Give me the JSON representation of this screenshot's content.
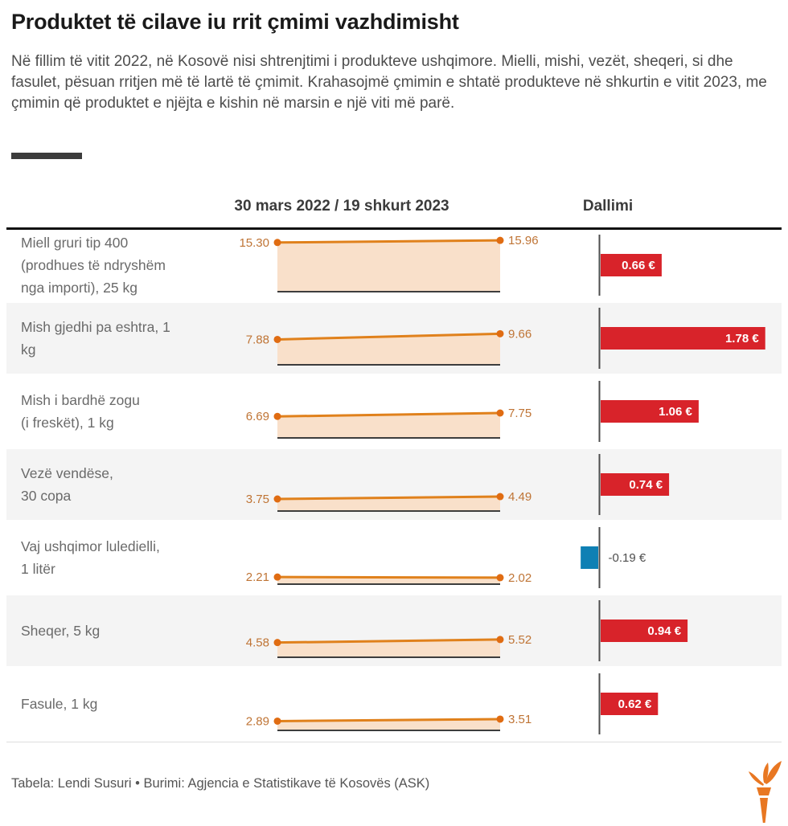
{
  "title": "Produktet të cilave iu rrit çmimi vazhdimisht",
  "intro": "Në fillim të vitit 2022, në Kosovë nisi shtrenjtimi i produkteve ushqimore. Mielli, mishi, vezët, sheqeri, si dhe fasulet, pësuan rritjen më të lartë të çmimit. Krahasojmë çmimin e shtatë produkteve në shkurtin e vitit 2023, me çmimin që produktet e njëjta e kishin në marsin e një viti më parë.",
  "chart_data": {
    "type": "slope",
    "slope_header": "30 mars 2022 / 19 shkurt 2023",
    "diff_header": "Dallimi",
    "unit": "€",
    "x": [
      "30 mars 2022",
      "19 shkurt 2023"
    ],
    "rows": [
      {
        "label_lines": [
          "Miell gruri tip 400",
          "(prodhues të ndryshëm",
          "nga importi), 25 kg"
        ],
        "value_2022": 15.3,
        "value_2023": 15.96,
        "value_2022_label": "15.30",
        "value_2023_label": "15.96",
        "diff": 0.66,
        "diff_label": "0.66 €"
      },
      {
        "label_lines": [
          "Mish gjedhi pa eshtra, 1",
          "kg"
        ],
        "value_2022": 7.88,
        "value_2023": 9.66,
        "value_2022_label": "7.88",
        "value_2023_label": "9.66",
        "diff": 1.78,
        "diff_label": "1.78 €"
      },
      {
        "label_lines": [
          "Mish i bardhë zogu",
          "(i freskët), 1 kg"
        ],
        "value_2022": 6.69,
        "value_2023": 7.75,
        "value_2022_label": "6.69",
        "value_2023_label": "7.75",
        "diff": 1.06,
        "diff_label": "1.06 €"
      },
      {
        "label_lines": [
          "Vezë vendëse,",
          "30 copa"
        ],
        "value_2022": 3.75,
        "value_2023": 4.49,
        "value_2022_label": "3.75",
        "value_2023_label": "4.49",
        "diff": 0.74,
        "diff_label": "0.74 €"
      },
      {
        "label_lines": [
          "Vaj ushqimor luledielli,",
          "1 litër"
        ],
        "value_2022": 2.21,
        "value_2023": 2.02,
        "value_2022_label": "2.21",
        "value_2023_label": "2.02",
        "diff": -0.19,
        "diff_label": "-0.19 €"
      },
      {
        "label_lines": [
          "Sheqer, 5 kg"
        ],
        "value_2022": 4.58,
        "value_2023": 5.52,
        "value_2022_label": "4.58",
        "value_2023_label": "5.52",
        "diff": 0.94,
        "diff_label": "0.94 €"
      },
      {
        "label_lines": [
          "Fasule, 1 kg"
        ],
        "value_2022": 2.89,
        "value_2023": 3.51,
        "value_2022_label": "2.89",
        "value_2023_label": "3.51",
        "diff": 0.62,
        "diff_label": "0.62 €"
      }
    ],
    "colors": {
      "line": "#e0811c",
      "dot": "#e06c12",
      "area": "#f9e0ca",
      "baseline": "#3d3d3d",
      "axis": "#4d4d4d",
      "positive_bar": "#d8232a",
      "negative_bar": "#0f80b4",
      "value_label": "#bf7435"
    },
    "legend_position": "none",
    "grid": false
  },
  "footer": {
    "credit": "Tabela: Lendi Susuri • Burimi: Agjencia e Statistikave të Kosovës (ASK)"
  },
  "logo": {
    "name": "rferl-torch",
    "color": "#e87722"
  }
}
